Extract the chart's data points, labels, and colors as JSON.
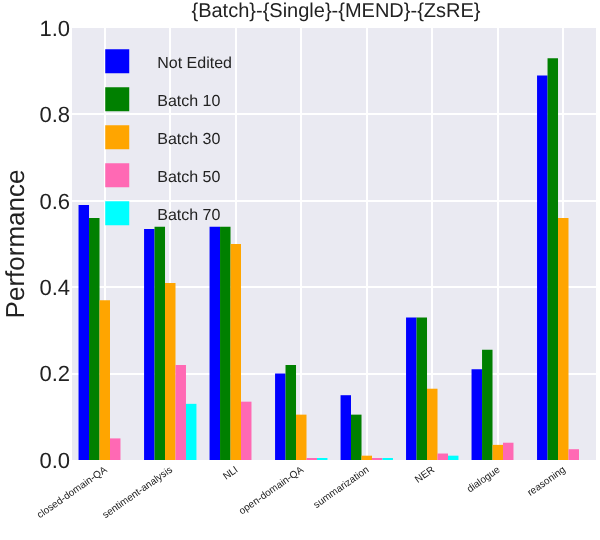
{
  "chart_data": {
    "type": "bar",
    "title": "{Batch}-{Single}-{MEND}-{ZsRE}",
    "ylabel": "Performance",
    "categories": [
      "closed-domain-QA",
      "sentiment-analysis",
      "NLI",
      "open-domain-QA",
      "summarization",
      "NER",
      "dialogue",
      "reasoning"
    ],
    "series": [
      {
        "name": "Not Edited",
        "color": "#0000ff",
        "values": [
          0.59,
          0.535,
          0.54,
          0.2,
          0.15,
          0.33,
          0.21,
          0.89
        ]
      },
      {
        "name": "Batch 10",
        "color": "#008000",
        "values": [
          0.56,
          0.54,
          0.54,
          0.22,
          0.105,
          0.33,
          0.255,
          0.93
        ]
      },
      {
        "name": "Batch 30",
        "color": "#ffa500",
        "values": [
          0.37,
          0.41,
          0.5,
          0.105,
          0.01,
          0.165,
          0.035,
          0.56
        ]
      },
      {
        "name": "Batch 50",
        "color": "#ff69b4",
        "values": [
          0.05,
          0.22,
          0.135,
          0.003,
          0.003,
          0.015,
          0.04,
          0.025
        ]
      },
      {
        "name": "Batch 70",
        "color": "#00ffff",
        "values": [
          0,
          0.13,
          0,
          0.002,
          0.002,
          0.01,
          0,
          0
        ]
      }
    ],
    "ylim": [
      0,
      1
    ],
    "yticks": [
      {
        "value": 0,
        "label": "0.0"
      },
      {
        "value": 0.2,
        "label": "0.2"
      },
      {
        "value": 0.4,
        "label": "0.4"
      },
      {
        "value": 0.6,
        "label": "0.6"
      },
      {
        "value": 0.8,
        "label": "0.8"
      },
      {
        "value": 1,
        "label": "1.0"
      }
    ],
    "grid": true,
    "legend": "top left"
  }
}
